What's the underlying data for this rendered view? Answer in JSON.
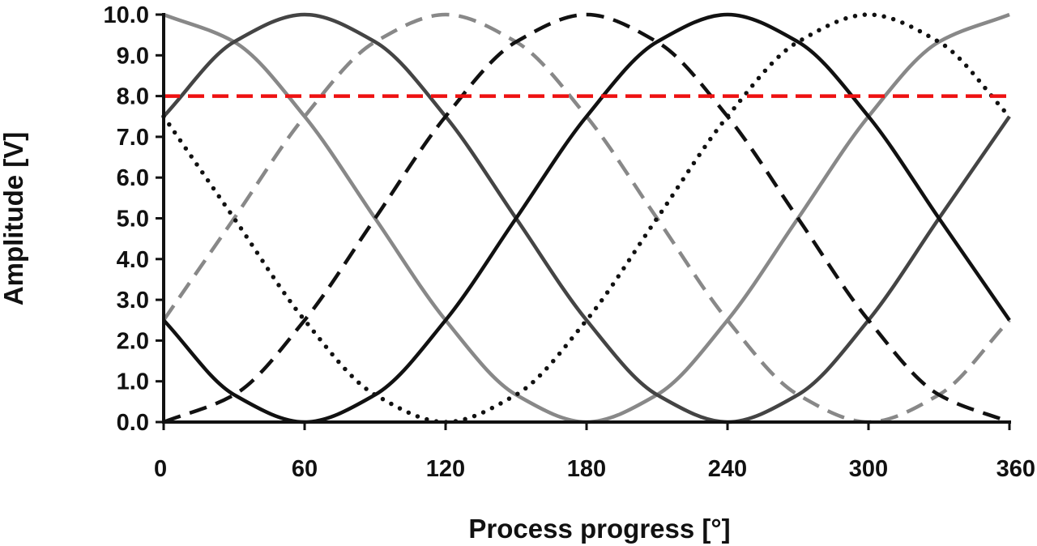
{
  "chart_data": {
    "type": "line",
    "xlabel": "Process progress [°]",
    "ylabel": "Amplitude [V]",
    "xlim": [
      0,
      360
    ],
    "ylim": [
      0,
      10
    ],
    "x_ticks": [
      0,
      60,
      120,
      180,
      240,
      300,
      360
    ],
    "x_tick_labels": [
      "0",
      "60",
      "120",
      "180",
      "240",
      "300",
      "360"
    ],
    "y_ticks": [
      0,
      1,
      2,
      3,
      4,
      5,
      6,
      7,
      8,
      9,
      10
    ],
    "y_tick_labels": [
      "0.0",
      "1.0",
      "2.0",
      "3.0",
      "4.0",
      "5.0",
      "6.0",
      "7.0",
      "8.0",
      "9.0",
      "10.0"
    ],
    "grid": false,
    "legend": "none",
    "x": [
      0,
      30,
      60,
      90,
      120,
      150,
      180,
      210,
      240,
      270,
      300,
      330,
      360
    ],
    "series": [
      {
        "color": "#888888",
        "style": "solid",
        "values": [
          10.0,
          9.33,
          7.5,
          5.0,
          2.5,
          0.67,
          0.0,
          0.67,
          2.5,
          5.0,
          7.5,
          9.33,
          10.0
        ]
      },
      {
        "color": "#444444",
        "style": "solid",
        "values": [
          7.5,
          9.33,
          10.0,
          9.33,
          7.5,
          5.0,
          2.5,
          0.67,
          0.0,
          0.67,
          2.5,
          5.0,
          7.5
        ]
      },
      {
        "color": "#888888",
        "style": "dashed",
        "values": [
          2.5,
          5.0,
          7.5,
          9.33,
          10.0,
          9.33,
          7.5,
          5.0,
          2.5,
          0.67,
          0.0,
          0.67,
          2.5
        ]
      },
      {
        "color": "#111111",
        "style": "dashed",
        "values": [
          0.0,
          0.67,
          2.5,
          5.0,
          7.5,
          9.33,
          10.0,
          9.33,
          7.5,
          5.0,
          2.5,
          0.67,
          0.0
        ]
      },
      {
        "color": "#111111",
        "style": "solid",
        "values": [
          2.5,
          0.67,
          0.0,
          0.67,
          2.5,
          5.0,
          7.5,
          9.33,
          10.0,
          9.33,
          7.5,
          5.0,
          2.5
        ]
      },
      {
        "color": "#111111",
        "style": "dotted",
        "values": [
          7.5,
          5.0,
          2.5,
          0.67,
          0.0,
          0.67,
          2.5,
          5.0,
          7.5,
          9.33,
          10.0,
          9.33,
          7.5
        ]
      }
    ],
    "threshold": {
      "y": 8.0,
      "color": "#ee1111",
      "style": "dashed"
    }
  }
}
